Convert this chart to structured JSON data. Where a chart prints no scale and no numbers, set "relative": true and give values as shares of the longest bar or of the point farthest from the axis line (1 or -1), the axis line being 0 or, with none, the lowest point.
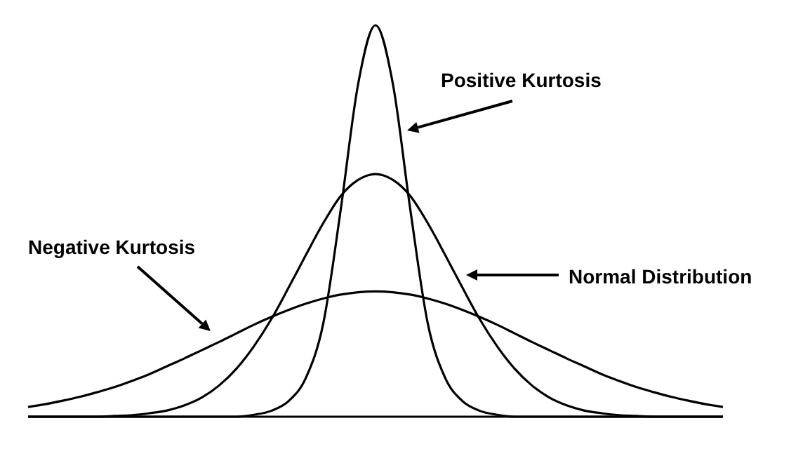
{
  "chart_data": {
    "type": "line",
    "relative": true,
    "marker": "none",
    "line_style": "solid",
    "categories": [
      null,
      null,
      null,
      null,
      null,
      null,
      null,
      null,
      null,
      null,
      null,
      null,
      null,
      null,
      null,
      null,
      null,
      null,
      null,
      null,
      null,
      null,
      null,
      null,
      null,
      null,
      null,
      null,
      null,
      null,
      null,
      null,
      null,
      null,
      null,
      null,
      null,
      null,
      null,
      null,
      null
    ],
    "series": [
      {
        "name": "Positive Kurtosis",
        "color": "#000000",
        "values": [
          0,
          0,
          0,
          0,
          0,
          0,
          0,
          0,
          0,
          0,
          0,
          0,
          0,
          0.005,
          0.015,
          0.04,
          0.1,
          0.24,
          0.53,
          0.85,
          1,
          0.85,
          0.53,
          0.24,
          0.1,
          0.04,
          0.015,
          0.005,
          0,
          0,
          0,
          0,
          0,
          0,
          0,
          0,
          0,
          0,
          0,
          0,
          0
        ]
      },
      {
        "name": "Normal Distribution",
        "color": "#000000",
        "values": [
          0,
          0,
          0,
          0,
          0,
          0.002,
          0.004,
          0.009,
          0.016,
          0.029,
          0.049,
          0.08,
          0.123,
          0.18,
          0.249,
          0.33,
          0.414,
          0.495,
          0.564,
          0.605,
          0.62,
          0.605,
          0.564,
          0.495,
          0.414,
          0.33,
          0.249,
          0.18,
          0.123,
          0.08,
          0.049,
          0.029,
          0.016,
          0.009,
          0.004,
          0.002,
          0,
          0,
          0,
          0,
          0
        ]
      },
      {
        "name": "Negative Kurtosis",
        "color": "#000000",
        "values": [
          0.025,
          0.032,
          0.041,
          0.051,
          0.063,
          0.076,
          0.092,
          0.109,
          0.129,
          0.149,
          0.17,
          0.191,
          0.213,
          0.235,
          0.255,
          0.273,
          0.289,
          0.302,
          0.312,
          0.318,
          0.32,
          0.318,
          0.312,
          0.302,
          0.289,
          0.273,
          0.255,
          0.235,
          0.213,
          0.191,
          0.17,
          0.149,
          0.129,
          0.109,
          0.092,
          0.076,
          0.063,
          0.051,
          0.041,
          0.032,
          0.025
        ]
      }
    ]
  }
}
